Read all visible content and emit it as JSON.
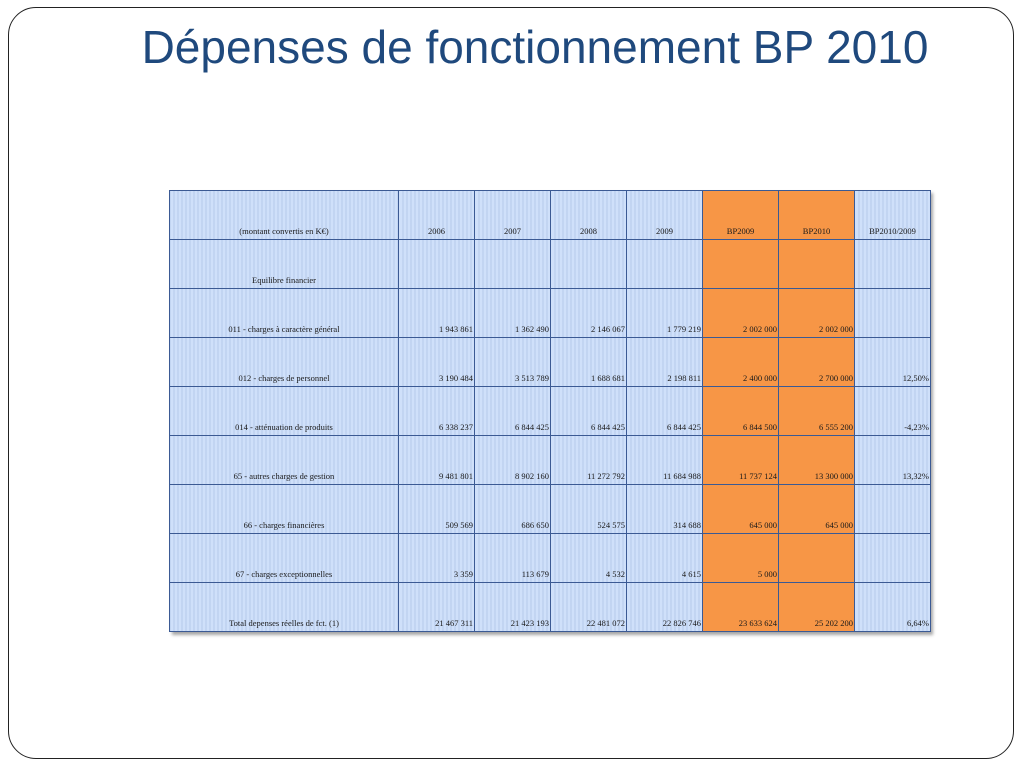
{
  "slide": {
    "title": "Dépenses de fonctionnement BP 2010"
  },
  "table": {
    "header": [
      "(montant convertis en K€)",
      "2006",
      "2007",
      "2008",
      "2009",
      "BP2009",
      "BP2010",
      "BP2010/2009"
    ],
    "rows": [
      [
        "Equilibre financier",
        "",
        "",
        "",
        "",
        "",
        "",
        ""
      ],
      [
        "011 - charges à caractère général",
        "1 943 861",
        "1 362 490",
        "2 146 067",
        "1 779 219",
        "2 002 000",
        "2 002 000",
        ""
      ],
      [
        "012 - charges de personnel",
        "3 190 484",
        "3 513 789",
        "1 688 681",
        "2 198 811",
        "2 400 000",
        "2 700 000",
        "12,50%"
      ],
      [
        "014 - atténuation de produits",
        "6 338 237",
        "6 844 425",
        "6 844 425",
        "6 844 425",
        "6 844 500",
        "6 555 200",
        "-4,23%"
      ],
      [
        "65 - autres charges de gestion",
        "9 481 801",
        "8 902 160",
        "11 272 792",
        "11 684 988",
        "11 737 124",
        "13 300 000",
        "13,32%"
      ],
      [
        "66 - charges financières",
        "509 569",
        "686 650",
        "524 575",
        "314 688",
        "645 000",
        "645 000",
        ""
      ],
      [
        "67 - charges exceptionnelles",
        "3 359",
        "113 679",
        "4 532",
        "4 615",
        "5 000",
        "",
        ""
      ],
      [
        "Total depenses réelles de fct. (1)",
        "21 467 311",
        "21 423 193",
        "22 481 072",
        "22 826 746",
        "23 633 624",
        "25 202 200",
        "6,64%"
      ]
    ],
    "colors": {
      "cell_bg": "#cfe0fa",
      "highlight": "#f79646",
      "border": "#3b5a94",
      "title": "#1f497d"
    }
  }
}
